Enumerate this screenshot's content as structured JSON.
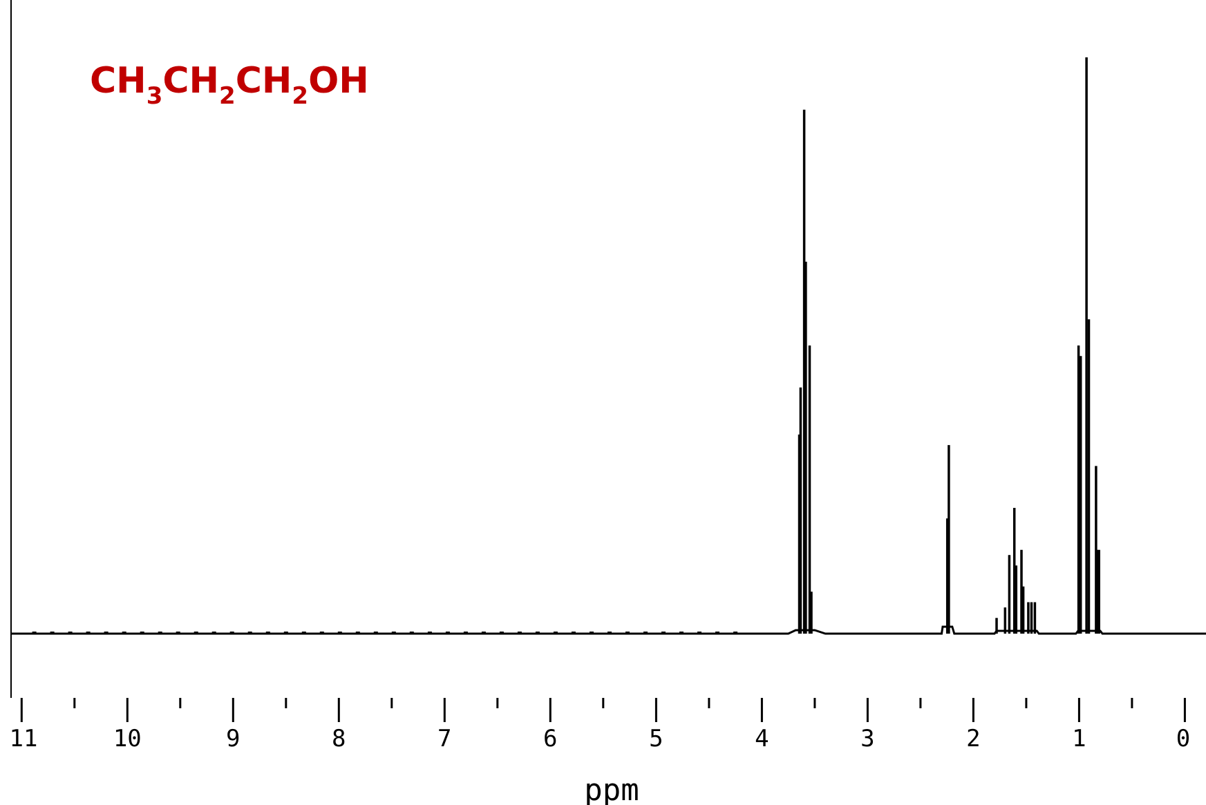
{
  "formula": {
    "segments": [
      {
        "text": "CH",
        "sub": false
      },
      {
        "text": "3",
        "sub": true
      },
      {
        "text": "CH",
        "sub": false
      },
      {
        "text": "2",
        "sub": true
      },
      {
        "text": "CH",
        "sub": false
      },
      {
        "text": "2",
        "sub": true
      },
      {
        "text": "OH",
        "sub": false
      }
    ],
    "color": "#c00000"
  },
  "chart_data": {
    "type": "line",
    "xlabel": "ppm",
    "ylabel": "",
    "title": "",
    "xlim": [
      11.1,
      -0.2
    ],
    "x_reversed": true,
    "ylim": [
      -0.12,
      1.1
    ],
    "grid": false,
    "major_ticks": [
      11,
      10,
      9,
      8,
      7,
      6,
      5,
      4,
      3,
      2,
      1,
      0
    ],
    "tick_labels": [
      "11",
      "10",
      "9",
      "8",
      "7",
      "6",
      "5",
      "4",
      "3",
      "2",
      "1",
      "0"
    ],
    "minor_ticks": [
      10.5,
      9.5,
      8.5,
      7.5,
      6.5,
      5.5,
      4.5,
      3.5,
      2.5,
      1.5,
      0.5
    ],
    "peaks": [
      {
        "ppm": 3.646,
        "height": 0.38
      },
      {
        "ppm": 3.634,
        "height": 0.47
      },
      {
        "ppm": 3.6,
        "height": 1.0
      },
      {
        "ppm": 3.585,
        "height": 0.71
      },
      {
        "ppm": 3.548,
        "height": 0.55
      },
      {
        "ppm": 3.532,
        "height": 0.08
      },
      {
        "ppm": 2.246,
        "height": 0.22
      },
      {
        "ppm": 2.232,
        "height": 0.36
      },
      {
        "ppm": 1.78,
        "height": 0.03
      },
      {
        "ppm": 1.7,
        "height": 0.05
      },
      {
        "ppm": 1.66,
        "height": 0.15
      },
      {
        "ppm": 1.612,
        "height": 0.24
      },
      {
        "ppm": 1.595,
        "height": 0.13
      },
      {
        "ppm": 1.545,
        "height": 0.16
      },
      {
        "ppm": 1.528,
        "height": 0.09
      },
      {
        "ppm": 1.48,
        "height": 0.06
      },
      {
        "ppm": 1.45,
        "height": 0.06
      },
      {
        "ppm": 1.418,
        "height": 0.06
      },
      {
        "ppm": 1.005,
        "height": 0.55
      },
      {
        "ppm": 0.985,
        "height": 0.53
      },
      {
        "ppm": 0.93,
        "height": 1.1
      },
      {
        "ppm": 0.908,
        "height": 0.6
      },
      {
        "ppm": 0.84,
        "height": 0.32
      },
      {
        "ppm": 0.828,
        "height": 0.16
      },
      {
        "ppm": 0.812,
        "height": 0.16
      }
    ]
  }
}
